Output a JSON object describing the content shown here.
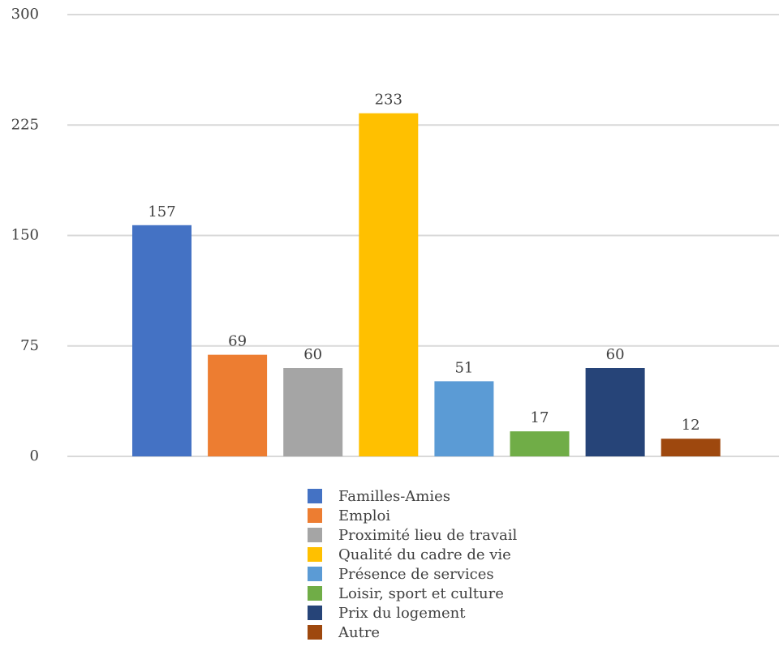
{
  "chart_data": {
    "type": "bar",
    "title": "",
    "xlabel": "",
    "ylabel": "",
    "ylim": [
      0,
      300
    ],
    "yticks": [
      0,
      75,
      150,
      225,
      300
    ],
    "grid": true,
    "legend_position": "bottom",
    "data_labels": true,
    "series": [
      {
        "name": "Familles-Amies",
        "value": 157,
        "color": "#4472C4"
      },
      {
        "name": "Emploi",
        "value": 69,
        "color": "#ED7D31"
      },
      {
        "name": "Proximité lieu de travail",
        "value": 60,
        "color": "#A5A5A5"
      },
      {
        "name": "Qualité du cadre de vie",
        "value": 233,
        "color": "#FFC000"
      },
      {
        "name": "Présence de services",
        "value": 51,
        "color": "#5B9BD5"
      },
      {
        "name": "Loisir, sport et culture",
        "value": 17,
        "color": "#70AD47"
      },
      {
        "name": "Prix du logement",
        "value": 60,
        "color": "#264478"
      },
      {
        "name": "Autre",
        "value": 12,
        "color": "#9E480E"
      }
    ]
  }
}
